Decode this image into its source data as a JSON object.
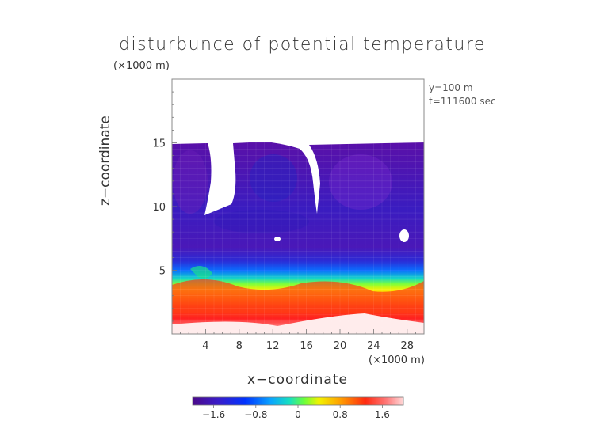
{
  "chart_data": {
    "type": "heatmap",
    "title": "disturbunce of potential temperature",
    "xlabel": "x-coordinate",
    "ylabel": "z-coordinate",
    "x_unit": "(×1000 m)",
    "z_unit": "(×1000 m)",
    "annotations": [
      "y=100 m",
      "t=111600 sec"
    ],
    "xlim": [
      0,
      30
    ],
    "zlim": [
      0,
      20
    ],
    "x_ticks": [
      4,
      8,
      12,
      16,
      20,
      24,
      28
    ],
    "z_ticks": [
      5,
      10,
      15
    ],
    "colorbar": {
      "range": [
        -2.0,
        2.0
      ],
      "tick_values": [
        -1.6,
        -0.8,
        0,
        0.8,
        1.6
      ],
      "tick_labels": [
        "−1.6",
        "−0.8",
        "0",
        "0.8",
        "1.6"
      ]
    },
    "regions": [
      {
        "z_range": [
          0,
          1
        ],
        "value": 1.9,
        "note": "surface layer, lightest"
      },
      {
        "z_range": [
          1,
          4.5
        ],
        "value": 1.6,
        "note": "warm red/orange layer"
      },
      {
        "z_range": [
          4.5,
          5.5
        ],
        "value": 0.6,
        "note": "yellow to green transition"
      },
      {
        "z_range": [
          5.5,
          6.5
        ],
        "value": -0.6,
        "note": "cyan/blue transition"
      },
      {
        "z_range": [
          6.5,
          15.3
        ],
        "value": -1.7,
        "note": "cool blue/purple layer"
      },
      {
        "z_range": [
          15.3,
          20
        ],
        "value": null,
        "note": "no data (white)"
      }
    ],
    "grid": true
  },
  "text": {
    "title": "disturbunce of potential temperature",
    "z_unit": "(×1000 m)",
    "y_position": "y=100 m",
    "time": "t=111600 sec",
    "ylabel": "z−coordinate",
    "xlabel": "x−coordinate",
    "x_unit": "(×1000 m)"
  }
}
